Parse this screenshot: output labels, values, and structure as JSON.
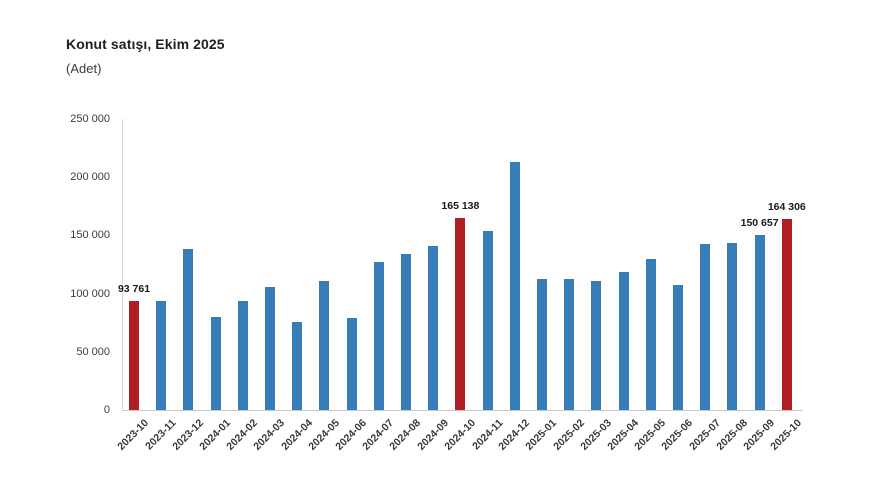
{
  "chart_data": {
    "type": "bar",
    "title": "Konut satışı, Ekim 2025",
    "subtitle": "(Adet)",
    "xlabel": "",
    "ylabel": "",
    "ylim": [
      0,
      250000
    ],
    "grid": false,
    "legend": false,
    "yticks": [
      {
        "value": 0,
        "label": "0"
      },
      {
        "value": 50000,
        "label": "50 000"
      },
      {
        "value": 100000,
        "label": "100 000"
      },
      {
        "value": 150000,
        "label": "150 000"
      },
      {
        "value": 200000,
        "label": "200 000"
      },
      {
        "value": 250000,
        "label": "250 000"
      }
    ],
    "categories": [
      "2023-10",
      "2023-11",
      "2023-12",
      "2024-01",
      "2024-02",
      "2024-03",
      "2024-04",
      "2024-05",
      "2024-06",
      "2024-07",
      "2024-08",
      "2024-09",
      "2024-10",
      "2024-11",
      "2024-12",
      "2025-01",
      "2025-02",
      "2025-03",
      "2025-04",
      "2025-05",
      "2025-06",
      "2025-07",
      "2025-08",
      "2025-09",
      "2025-10"
    ],
    "values": [
      93761,
      93514,
      138577,
      80308,
      93902,
      105476,
      75569,
      110588,
      79313,
      127088,
      134155,
      140919,
      165138,
      153640,
      212637,
      112173,
      112818,
      110795,
      118359,
      130025,
      107723,
      142858,
      143319,
      150657,
      164306
    ],
    "bar_color": "#377db8",
    "highlight_color": "#b01e24",
    "highlight_indices": [
      0,
      12,
      24
    ],
    "data_labels": [
      {
        "index": 0,
        "label": "93 761"
      },
      {
        "index": 12,
        "label": "165 138"
      },
      {
        "index": 23,
        "label": "150 657"
      },
      {
        "index": 24,
        "label": "164 306"
      }
    ]
  }
}
